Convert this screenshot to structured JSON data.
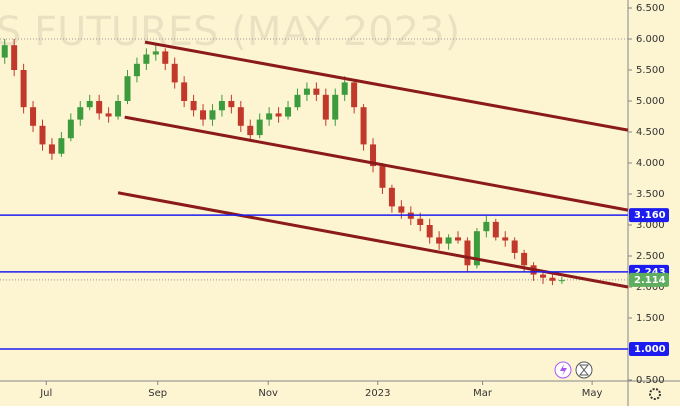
{
  "chart_data": {
    "type": "candlestick",
    "watermark": "S FUTURES (MAY 2023)",
    "up_color": "#3c9b3c",
    "down_color": "#c0392b",
    "background": "#fdf5d2",
    "x": [
      0,
      1,
      2,
      3,
      4,
      5,
      6,
      7,
      8,
      9,
      10,
      11,
      12,
      13,
      14,
      15,
      16,
      17,
      18,
      19,
      20,
      21,
      22,
      23,
      24,
      25,
      26,
      27,
      28,
      29,
      30,
      31,
      32,
      33,
      34,
      35,
      36,
      37,
      38,
      39,
      40,
      41,
      42,
      43,
      44,
      45,
      46,
      47,
      48,
      49,
      50,
      51,
      52,
      53,
      54,
      55,
      56,
      57,
      58,
      59
    ],
    "open": [
      5.7,
      5.9,
      5.5,
      4.9,
      4.6,
      4.3,
      4.15,
      4.4,
      4.7,
      4.9,
      5.0,
      4.8,
      4.75,
      5.0,
      5.4,
      5.6,
      5.75,
      5.8,
      5.6,
      5.3,
      5.0,
      4.85,
      4.7,
      4.85,
      5.0,
      4.9,
      4.6,
      4.45,
      4.7,
      4.8,
      4.75,
      4.9,
      5.1,
      5.2,
      5.1,
      4.7,
      5.1,
      5.3,
      4.9,
      4.3,
      3.95,
      3.6,
      3.3,
      3.2,
      3.1,
      3.0,
      2.8,
      2.7,
      2.8,
      2.75,
      2.35,
      2.9,
      3.05,
      2.8,
      2.75,
      2.55,
      2.35,
      2.2,
      2.15,
      2.1
    ],
    "high": [
      6.0,
      6.0,
      5.6,
      5.0,
      4.7,
      4.4,
      4.5,
      4.8,
      5.0,
      5.1,
      5.1,
      4.9,
      5.1,
      5.5,
      5.7,
      5.85,
      5.9,
      5.85,
      5.7,
      5.4,
      5.1,
      4.95,
      4.95,
      5.1,
      5.1,
      5.0,
      4.7,
      4.8,
      4.9,
      4.9,
      5.0,
      5.2,
      5.3,
      5.3,
      5.2,
      5.2,
      5.4,
      5.35,
      4.95,
      4.4,
      4.0,
      3.65,
      3.4,
      3.3,
      3.2,
      3.1,
      2.9,
      2.85,
      2.9,
      2.8,
      2.95,
      3.15,
      3.1,
      2.9,
      2.8,
      2.6,
      2.4,
      2.25,
      2.2,
      2.16
    ],
    "low": [
      5.6,
      5.4,
      4.8,
      4.5,
      4.2,
      4.05,
      4.1,
      4.35,
      4.6,
      4.85,
      4.7,
      4.65,
      4.7,
      4.95,
      5.3,
      5.5,
      5.65,
      5.5,
      5.2,
      4.9,
      4.75,
      4.6,
      4.6,
      4.75,
      4.8,
      4.5,
      4.35,
      4.4,
      4.6,
      4.65,
      4.7,
      4.85,
      5.0,
      5.0,
      4.6,
      4.6,
      5.0,
      4.8,
      4.2,
      3.85,
      3.5,
      3.2,
      3.1,
      3.0,
      2.9,
      2.7,
      2.6,
      2.6,
      2.7,
      2.25,
      2.3,
      2.8,
      2.75,
      2.65,
      2.45,
      2.25,
      2.1,
      2.05,
      2.03,
      2.05
    ],
    "close": [
      5.9,
      5.5,
      4.9,
      4.6,
      4.3,
      4.15,
      4.4,
      4.7,
      4.9,
      5.0,
      4.8,
      4.75,
      5.0,
      5.4,
      5.6,
      5.75,
      5.8,
      5.6,
      5.3,
      5.0,
      4.85,
      4.7,
      4.85,
      5.0,
      4.9,
      4.6,
      4.45,
      4.7,
      4.8,
      4.75,
      4.9,
      5.1,
      5.2,
      5.1,
      4.7,
      5.1,
      5.3,
      4.9,
      4.3,
      3.95,
      3.6,
      3.3,
      3.2,
      3.1,
      3.0,
      2.8,
      2.7,
      2.8,
      2.75,
      2.35,
      2.9,
      3.05,
      2.8,
      2.75,
      2.55,
      2.35,
      2.2,
      2.15,
      2.1,
      2.11
    ],
    "xlim": [
      -0.5,
      66
    ],
    "xticks": [
      {
        "value": 4.4,
        "label": "Jul"
      },
      {
        "value": 16.2,
        "label": "Sep"
      },
      {
        "value": 27.9,
        "label": "Nov"
      },
      {
        "value": 39.5,
        "label": "2023"
      },
      {
        "value": 50.6,
        "label": "Mar"
      },
      {
        "value": 62.2,
        "label": "May"
      }
    ],
    "ylim": [
      0.5,
      6.5
    ],
    "yticks": [
      {
        "value": 0.5,
        "label": "0.500"
      },
      {
        "value": 1.0,
        "label": "1.000"
      },
      {
        "value": 1.5,
        "label": "1.500"
      },
      {
        "value": 2.0,
        "label": "2.000"
      },
      {
        "value": 2.5,
        "label": "2.500"
      },
      {
        "value": 3.0,
        "label": "3.000"
      },
      {
        "value": 3.5,
        "label": "3.500"
      },
      {
        "value": 4.0,
        "label": "4.000"
      },
      {
        "value": 4.5,
        "label": "4.500"
      },
      {
        "value": 5.0,
        "label": "5.000"
      },
      {
        "value": 5.5,
        "label": "5.500"
      },
      {
        "value": 6.0,
        "label": "6.000"
      },
      {
        "value": 6.5,
        "label": "6.500"
      }
    ],
    "levels": [
      {
        "value": 3.16,
        "label": "3.160",
        "color": "#1c1cf0"
      },
      {
        "value": 2.243,
        "label": "2.243",
        "color": "#1c1cf0"
      },
      {
        "value": 1.0,
        "label": "1.000",
        "color": "#1c1cf0"
      }
    ],
    "last_price": {
      "value": 2.114,
      "label": "2.114",
      "color": "#5fae5f"
    },
    "dotted_level": 6.0,
    "trendline_color": "#8b1a1a",
    "trendlines": [
      {
        "x": [
          14.86,
          66
        ],
        "y": [
          5.95,
          4.53
        ]
      },
      {
        "x": [
          12.7,
          66
        ],
        "y": [
          4.74,
          3.24
        ]
      },
      {
        "x": [
          12.0,
          66
        ],
        "y": [
          3.52,
          2.0
        ]
      }
    ]
  }
}
